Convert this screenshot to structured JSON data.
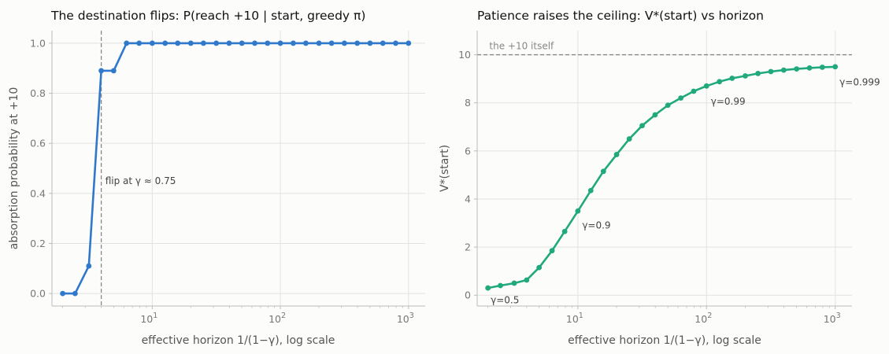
{
  "chart_data": [
    {
      "type": "line",
      "title": "The destination flips: P(reach +10 | start, greedy π)",
      "xlabel": "effective horizon 1/(1−γ), log scale",
      "ylabel": "absorption probability at +10",
      "xscale": "log",
      "xlim": [
        1.65,
        1350
      ],
      "ylim": [
        -0.05,
        1.05
      ],
      "grid": true,
      "xticks": [
        {
          "v": 10,
          "base": "10",
          "exp": "1"
        },
        {
          "v": 100,
          "base": "10",
          "exp": "2"
        },
        {
          "v": 1000,
          "base": "10",
          "exp": "3"
        }
      ],
      "yticks": [
        {
          "v": 0.0,
          "label": "0.0"
        },
        {
          "v": 0.2,
          "label": "0.2"
        },
        {
          "v": 0.4,
          "label": "0.4"
        },
        {
          "v": 0.6,
          "label": "0.6"
        },
        {
          "v": 0.8,
          "label": "0.8"
        },
        {
          "v": 1.0,
          "label": "1.0"
        }
      ],
      "color": "#2f78cc",
      "series": [
        {
          "x": [
            2.0,
            2.5,
            3.2,
            4.0,
            5.0,
            6.3,
            7.9,
            10.0,
            12.6,
            15.8,
            20.0,
            25.1,
            31.6,
            39.8,
            50.1,
            63.1,
            79.4,
            100,
            126,
            158,
            200,
            251,
            316,
            398,
            501,
            631,
            794,
            1000
          ],
          "y": [
            0.0,
            0.0,
            0.11,
            0.89,
            0.89,
            1.0,
            1.0,
            1.0,
            1.0,
            1.0,
            1.0,
            1.0,
            1.0,
            1.0,
            1.0,
            1.0,
            1.0,
            1.0,
            1.0,
            1.0,
            1.0,
            1.0,
            1.0,
            1.0,
            1.0,
            1.0,
            1.0,
            1.0
          ]
        }
      ],
      "vline": {
        "x": 4.0
      },
      "annotations": [
        {
          "text": "flip at γ ≈ 0.75",
          "x": 4.3,
          "y": 0.45
        }
      ]
    },
    {
      "type": "line",
      "title": "Patience raises the ceiling: V*(start) vs horizon",
      "xlabel": "effective horizon 1/(1−γ), log scale",
      "ylabel": "V*(start)",
      "xscale": "log",
      "xlim": [
        1.65,
        1350
      ],
      "ylim": [
        -0.45,
        11.0
      ],
      "grid": true,
      "xticks": [
        {
          "v": 10,
          "base": "10",
          "exp": "1"
        },
        {
          "v": 100,
          "base": "10",
          "exp": "2"
        },
        {
          "v": 1000,
          "base": "10",
          "exp": "3"
        }
      ],
      "yticks": [
        {
          "v": 0,
          "label": "0"
        },
        {
          "v": 2,
          "label": "2"
        },
        {
          "v": 4,
          "label": "4"
        },
        {
          "v": 6,
          "label": "6"
        },
        {
          "v": 8,
          "label": "8"
        },
        {
          "v": 10,
          "label": "10"
        }
      ],
      "color": "#20a97c",
      "series": [
        {
          "x": [
            2.0,
            2.5,
            3.2,
            4.0,
            5.0,
            6.3,
            7.9,
            10.0,
            12.6,
            15.8,
            20.0,
            25.1,
            31.6,
            39.8,
            50.1,
            63.1,
            79.4,
            100,
            126,
            158,
            200,
            251,
            316,
            398,
            501,
            631,
            794,
            1000
          ],
          "y": [
            0.3,
            0.4,
            0.5,
            0.63,
            1.15,
            1.85,
            2.65,
            3.5,
            4.35,
            5.15,
            5.85,
            6.5,
            7.05,
            7.5,
            7.9,
            8.2,
            8.48,
            8.7,
            8.88,
            9.02,
            9.12,
            9.22,
            9.3,
            9.36,
            9.41,
            9.45,
            9.48,
            9.5
          ]
        }
      ],
      "hline": {
        "y": 10,
        "label": "the +10 itself"
      },
      "annotations": [
        {
          "text": "γ=0.5",
          "x": 2.1,
          "y": -0.2
        },
        {
          "text": "γ=0.9",
          "x": 10.8,
          "y": 2.9
        },
        {
          "text": "γ=0.99",
          "x": 108,
          "y": 8.05
        },
        {
          "text": "γ=0.999",
          "x": 1080,
          "y": 8.85
        }
      ]
    }
  ]
}
